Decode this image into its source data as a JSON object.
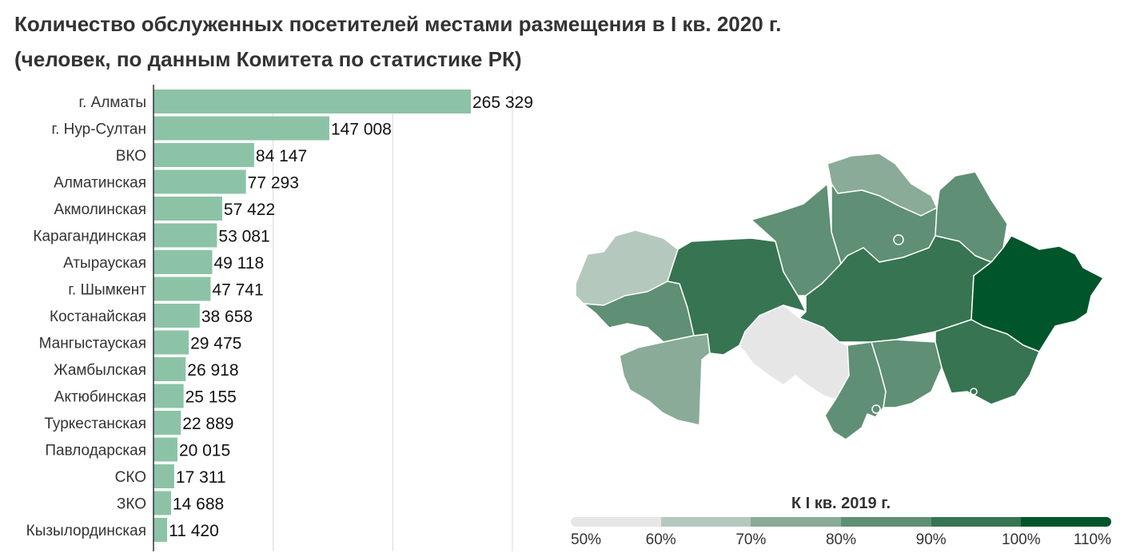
{
  "title": {
    "line1": "Количество обслуженных посетителей местами размещения в I кв. 2020 г.",
    "line2": "(человек, по данным Комитета по статистике РК)"
  },
  "chart_data": [
    {
      "type": "bar",
      "orientation": "horizontal",
      "categories": [
        "г. Алматы",
        "г. Нур-Султан",
        "ВКО",
        "Алматинская",
        "Акмолинская",
        "Карагандинская",
        "Атырауская",
        "г. Шымкент",
        "Костанайская",
        "Мангыстауская",
        "Жамбылская",
        "Актюбинская",
        "Туркестанская",
        "Павлодарская",
        "СКО",
        "ЗКО",
        "Кызылординская"
      ],
      "values": [
        265329,
        147008,
        84147,
        77293,
        57422,
        53081,
        49118,
        47741,
        38658,
        29475,
        26918,
        25155,
        22889,
        20015,
        17311,
        14688,
        11420
      ],
      "value_labels": [
        "265 329",
        "147 008",
        "84 147",
        "77 293",
        "57 422",
        "53 081",
        "49 118",
        "47 741",
        "38 658",
        "29 475",
        "26 918",
        "25 155",
        "22 889",
        "20 015",
        "17 311",
        "14 688",
        "11 420"
      ],
      "xlim": [
        0,
        300000
      ],
      "grid": true,
      "bar_color": "#8cc3a6"
    },
    {
      "type": "choropleth",
      "legend_title": "К I кв. 2019 г.",
      "scale_labels": [
        "50%",
        "60%",
        "70%",
        "80%",
        "90%",
        "100%",
        "110%"
      ],
      "scale_colors": [
        "#e6e6e6",
        "#b5c8bd",
        "#8aab97",
        "#5f8f74",
        "#367452",
        "#00552a"
      ]
    }
  ]
}
